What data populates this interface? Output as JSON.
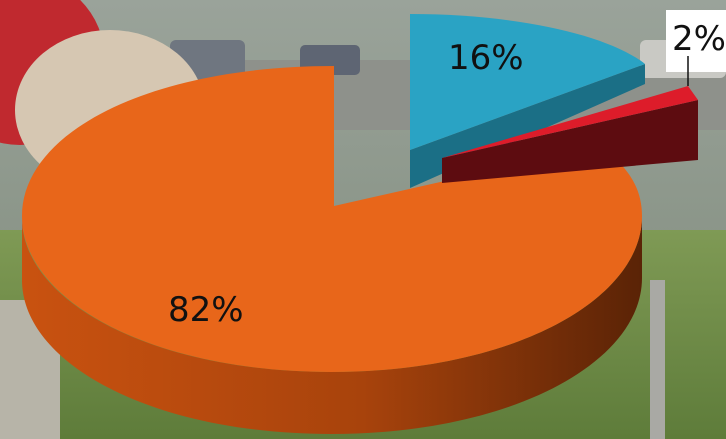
{
  "chart_data": {
    "type": "pie",
    "style": "3d-exploded",
    "slices": [
      {
        "label": "82%",
        "value": 82,
        "color": "#e8661a"
      },
      {
        "label": "16%",
        "value": 16,
        "color": "#2aa3c4"
      },
      {
        "label": "2%",
        "value": 2,
        "color": "#dd1c2a"
      }
    ]
  }
}
